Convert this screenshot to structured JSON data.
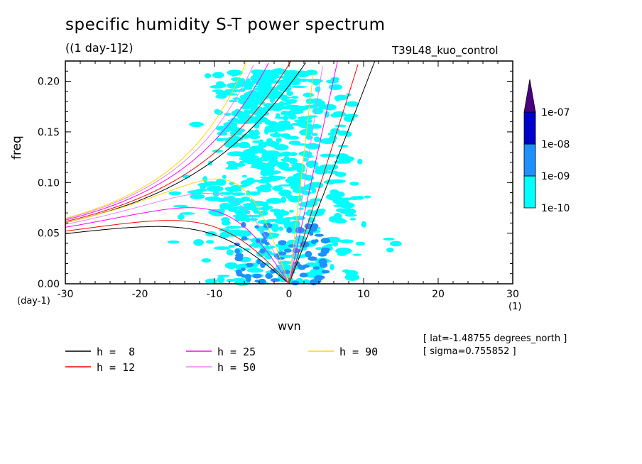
{
  "chart_data": {
    "type": "heatmap",
    "title": "specific humidity S-T power spectrum",
    "units": "((1 day-1]2)",
    "experiment": "T39L48_kuo_control",
    "xlabel": "wvn",
    "ylabel": "freq",
    "x_unit": "(1)",
    "y_unit": "(day-1)",
    "xlim": [
      -30,
      30
    ],
    "ylim": [
      0,
      0.22
    ],
    "xticks": [
      -30,
      -20,
      -10,
      0,
      10,
      20,
      30
    ],
    "xtick_labels": [
      "-30",
      "-20",
      "-10",
      "0",
      "10",
      "20",
      "30"
    ],
    "yticks": [
      0,
      0.05,
      0.1,
      0.15,
      0.2
    ],
    "ytick_labels": [
      "0.00",
      "0.05",
      "0.10",
      "0.15",
      "0.20"
    ],
    "colorbar": {
      "levels": [
        "1e-10",
        "1e-09",
        "1e-08",
        "1e-07"
      ],
      "colors": [
        "#00ffff",
        "#1e90ff",
        "#0000cd",
        "#4b0082"
      ]
    },
    "dispersion_curves": [
      {
        "label": "h =  8",
        "h": 8,
        "color": "#000000"
      },
      {
        "label": "h = 12",
        "h": 12,
        "color": "#ff0000"
      },
      {
        "label": "h = 25",
        "h": 25,
        "color": "#ff00ff"
      },
      {
        "label": "h = 50",
        "h": 50,
        "color": "#ee82ee"
      },
      {
        "label": "h = 90",
        "h": 90,
        "color": "#ffd700"
      }
    ],
    "annotations": [
      "[ lat=-1.48755 degrees_north ]",
      "[ sigma=0.755852 ]"
    ]
  }
}
